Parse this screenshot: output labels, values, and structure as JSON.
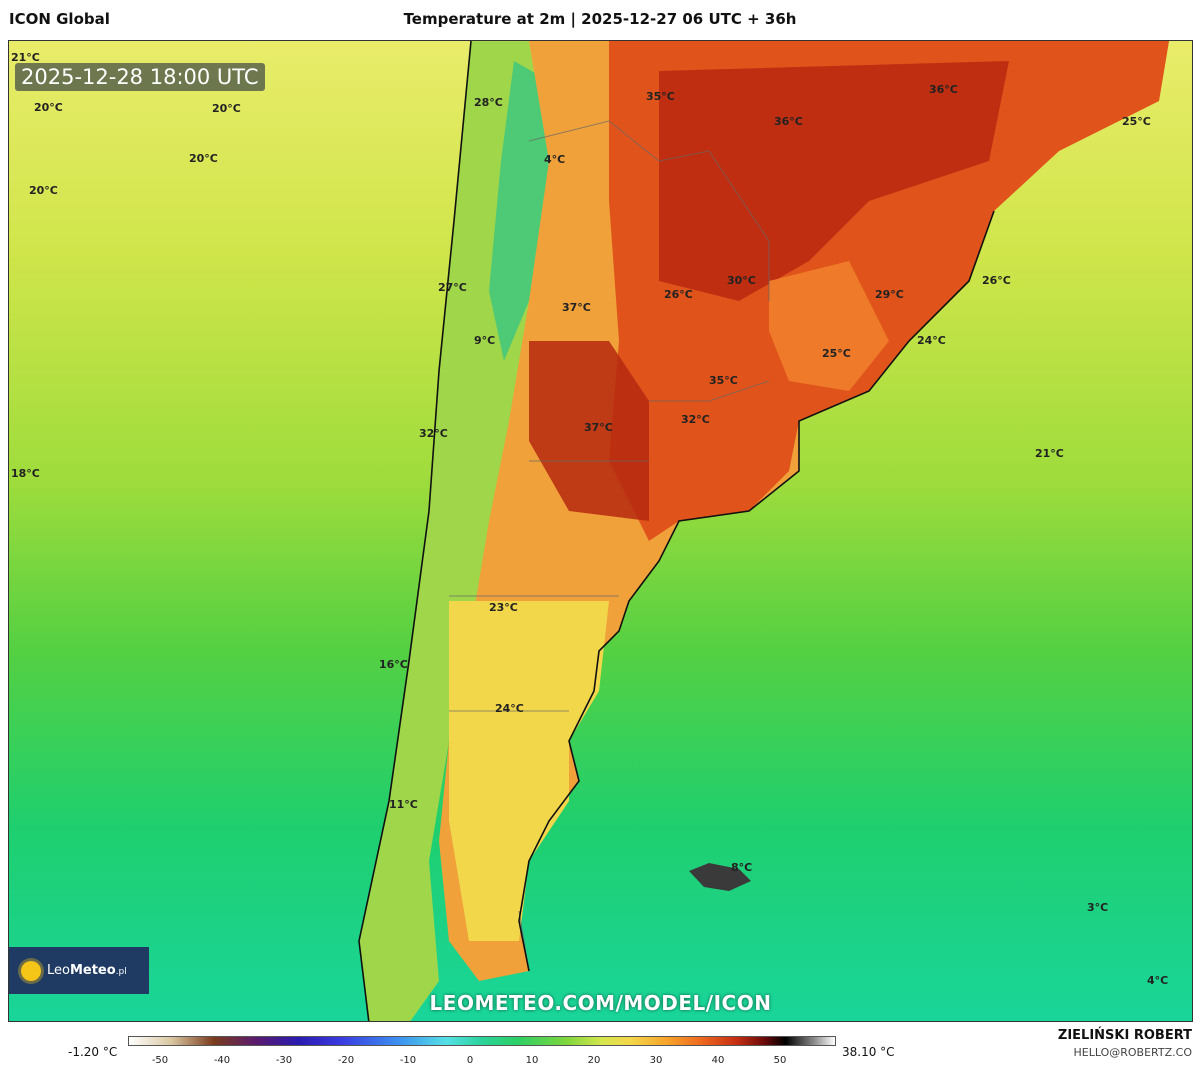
{
  "header": {
    "model": "ICON Global",
    "title": "Temperature at 2m | 2025-12-27 06 UTC + 36h"
  },
  "map": {
    "valid_time": "2025-12-28 18:00 UTC",
    "watermark": "LEOMETEO.COM/MODEL/ICON",
    "labels": [
      "21°C",
      "20°C",
      "20°C",
      "20°C",
      "20°C",
      "28°C",
      "4°C",
      "35°C",
      "36°C",
      "36°C",
      "25°C",
      "27°C",
      "37°C",
      "26°C",
      "30°C",
      "29°C",
      "26°C",
      "9°C",
      "24°C",
      "25°C",
      "35°C",
      "32°C",
      "32°C",
      "37°C",
      "21°C",
      "18°C",
      "23°C",
      "16°C",
      "24°C",
      "11°C",
      "8°C",
      "3°C",
      "4°C"
    ]
  },
  "logo": {
    "brand_light": "Leo",
    "brand_bold": "Meteo",
    "suffix": ".pl"
  },
  "legend": {
    "min": "-1.20 °C",
    "max": "38.10 °C",
    "ticks": [
      "-50",
      "-40",
      "-30",
      "-20",
      "-10",
      "0",
      "10",
      "20",
      "30",
      "40",
      "50"
    ]
  },
  "credits": {
    "author": "ZIELIŃSKI ROBERT",
    "email": "HELLO@ROBERTZ.CO"
  },
  "colors": {
    "hot": "#c62e12",
    "warm": "#ee6a1f",
    "mild": "#f3d74a",
    "cool": "#2cd066",
    "cold": "#19d59a"
  }
}
